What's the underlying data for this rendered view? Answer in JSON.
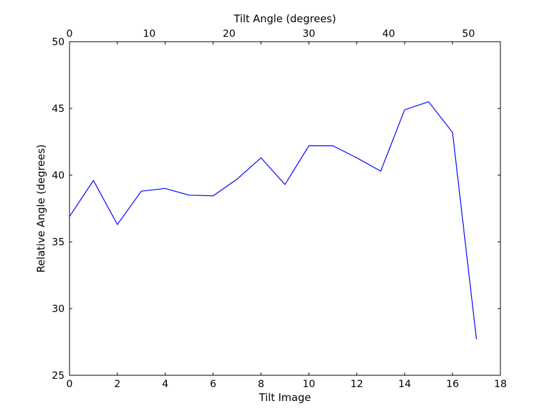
{
  "chart_data": {
    "type": "line",
    "title": "",
    "xlabel": "Tilt Image",
    "x2label": "Tilt Angle (degrees)",
    "ylabel": "Relative Angle (degrees)",
    "xlim": [
      0,
      18
    ],
    "x2lim": [
      0,
      54
    ],
    "ylim": [
      25,
      50
    ],
    "xticks": [
      0,
      2,
      4,
      6,
      8,
      10,
      12,
      14,
      16,
      18
    ],
    "x2ticks": [
      0,
      10,
      20,
      30,
      40,
      50
    ],
    "yticks": [
      25,
      30,
      35,
      40,
      45,
      50
    ],
    "grid": false,
    "line_color": "#0000ff",
    "series": [
      {
        "x": [
          0,
          1,
          2,
          3,
          4,
          5,
          6,
          7,
          8,
          9,
          10,
          11,
          12,
          13,
          14,
          15,
          16,
          17
        ],
        "values": [
          36.9,
          39.6,
          36.3,
          38.8,
          39.0,
          38.5,
          38.45,
          39.7,
          41.3,
          39.3,
          42.2,
          42.2,
          41.3,
          40.3,
          44.9,
          45.5,
          43.2,
          27.7
        ]
      }
    ]
  }
}
